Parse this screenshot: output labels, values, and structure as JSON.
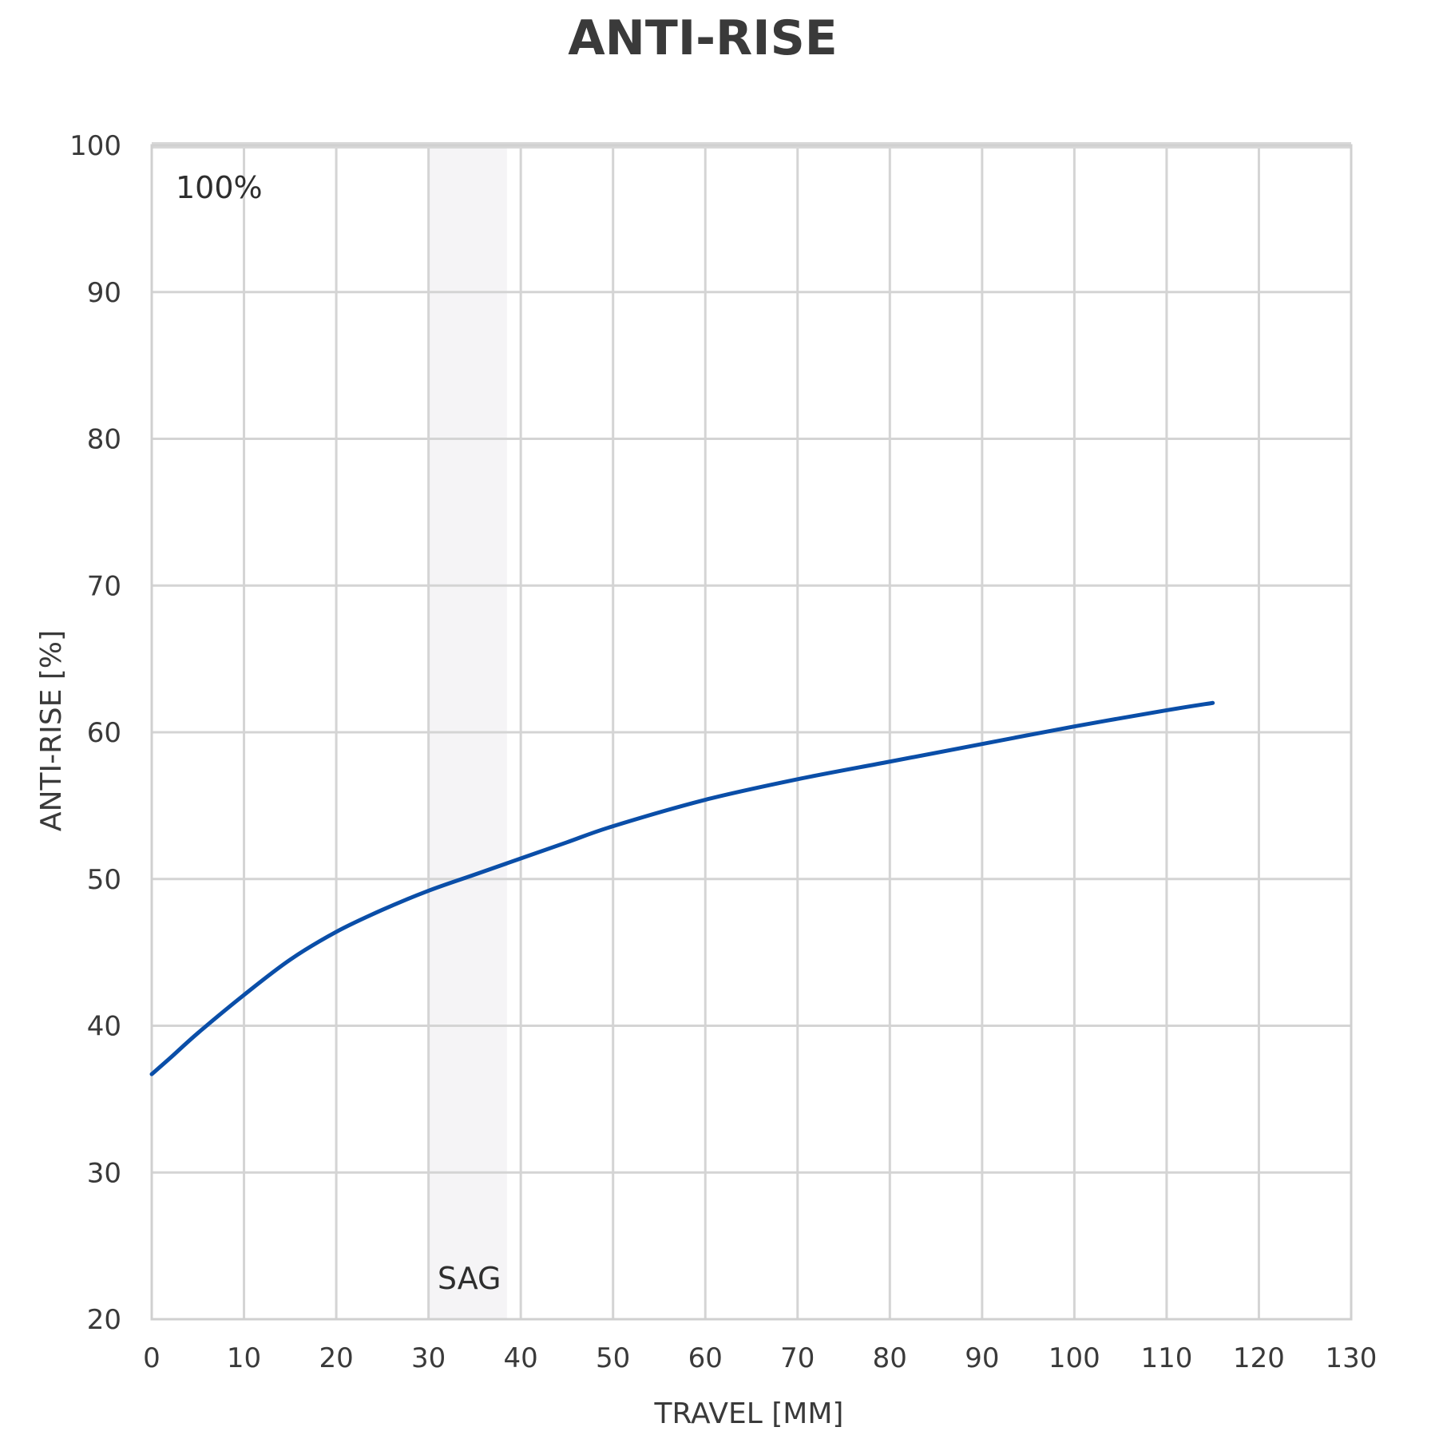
{
  "chart_data": {
    "type": "line",
    "title": "ANTI-RISE",
    "xlabel": "TRAVEL [MM]",
    "ylabel": "ANTI-RISE [%]",
    "xlim": [
      0,
      130
    ],
    "ylim": [
      20,
      100
    ],
    "x_ticks": [
      "0",
      "10",
      "20",
      "30",
      "40",
      "50",
      "60",
      "70",
      "80",
      "90",
      "100",
      "110",
      "120",
      "130"
    ],
    "y_ticks": [
      "20",
      "30",
      "40",
      "50",
      "60",
      "70",
      "80",
      "90",
      "100"
    ],
    "grid": true,
    "annotations": {
      "top_left": "100%",
      "sag_band_label": "SAG"
    },
    "sag_band": [
      30,
      38.5
    ],
    "series": [
      {
        "color": "#0a4ea8",
        "x": [
          0,
          2,
          5,
          10,
          15,
          20,
          25,
          30,
          35,
          40,
          45,
          50,
          60,
          70,
          80,
          90,
          100,
          110,
          115
        ],
        "y": [
          36.7,
          37.8,
          39.5,
          42.1,
          44.5,
          46.4,
          47.9,
          49.2,
          50.3,
          51.4,
          52.5,
          53.6,
          55.4,
          56.8,
          58.0,
          59.2,
          60.4,
          61.5,
          62.0
        ]
      }
    ],
    "colors": {
      "line": "#0a4ea8",
      "grid": "#d4d4d4",
      "sag_band": "#f5f4f6",
      "text": "#3a3a3a"
    }
  }
}
